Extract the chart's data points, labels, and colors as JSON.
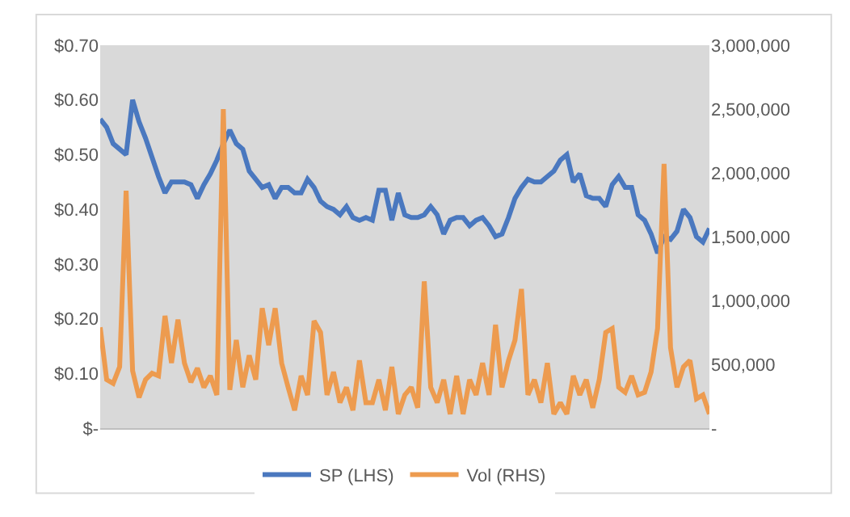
{
  "chart_data": {
    "type": "line",
    "tick_labels": "y",
    "legend": "bottom",
    "grid": false,
    "marker": "none",
    "line_style": "solid",
    "categories": [
      null,
      null,
      null,
      null,
      null,
      null,
      null,
      null,
      null,
      null,
      null,
      null,
      null,
      null,
      null,
      null,
      null,
      null,
      null,
      null,
      null,
      null,
      null,
      null,
      null,
      null,
      null,
      null,
      null,
      null,
      null,
      null,
      null,
      null,
      null,
      null,
      null,
      null,
      null,
      null,
      null,
      null,
      null,
      null,
      null,
      null,
      null,
      null,
      null,
      null,
      null,
      null,
      null,
      null,
      null,
      null,
      null,
      null,
      null,
      null,
      null,
      null,
      null,
      null,
      null,
      null,
      null,
      null,
      null,
      null,
      null,
      null,
      null,
      null,
      null,
      null,
      null,
      null,
      null,
      null,
      null,
      null,
      null,
      null,
      null,
      null,
      null,
      null,
      null,
      null,
      null,
      null,
      null,
      null,
      null
    ],
    "ylim": [
      0,
      0.7
    ],
    "yticks": [
      {
        "value": 0,
        "label": "$-"
      },
      {
        "value": 0.1,
        "label": "$0.10"
      },
      {
        "value": 0.2,
        "label": "$0.20"
      },
      {
        "value": 0.3,
        "label": "$0.30"
      },
      {
        "value": 0.4,
        "label": "$0.40"
      },
      {
        "value": 0.5,
        "label": "$0.50"
      },
      {
        "value": 0.6,
        "label": "$0.60"
      },
      {
        "value": 0.7,
        "label": "$0.70"
      }
    ],
    "y2lim": [
      0,
      3000000
    ],
    "y2ticks": [
      {
        "value": 0,
        "label": "-"
      },
      {
        "value": 500000,
        "label": "500,000"
      },
      {
        "value": 1000000,
        "label": "1,000,000"
      },
      {
        "value": 1500000,
        "label": "1,500,000"
      },
      {
        "value": 2000000,
        "label": "2,000,000"
      },
      {
        "value": 2500000,
        "label": "2,500,000"
      },
      {
        "value": 3000000,
        "label": "3,000,000"
      }
    ],
    "series": [
      {
        "name": "SP (LHS)",
        "color": "#4a78bf",
        "values": [
          0.565,
          0.55,
          0.52,
          0.51,
          0.5,
          0.6,
          0.56,
          0.53,
          0.495,
          0.46,
          0.43,
          0.45,
          0.45,
          0.45,
          0.445,
          0.42,
          0.445,
          0.465,
          0.49,
          0.52,
          0.545,
          0.52,
          0.51,
          0.47,
          0.455,
          0.44,
          0.445,
          0.42,
          0.44,
          0.44,
          0.43,
          0.43,
          0.455,
          0.44,
          0.415,
          0.405,
          0.4,
          0.39,
          0.405,
          0.385,
          0.38,
          0.385,
          0.38,
          0.435,
          0.435,
          0.38,
          0.43,
          0.39,
          0.385,
          0.385,
          0.39,
          0.405,
          0.39,
          0.355,
          0.38,
          0.385,
          0.385,
          0.37,
          0.38,
          0.385,
          0.37,
          0.35,
          0.355,
          0.385,
          0.42,
          0.44,
          0.455,
          0.45,
          0.45,
          0.46,
          0.47,
          0.49,
          0.5,
          0.45,
          0.465,
          0.425,
          0.42,
          0.42,
          0.405,
          0.445,
          0.46,
          0.44,
          0.44,
          0.39,
          0.38,
          0.355,
          0.32,
          0.35,
          0.345,
          0.36,
          0.4,
          0.385,
          0.35,
          0.34,
          0.365
        ]
      },
      {
        "name": "Vol (RHS)",
        "color": "#ed9b4f",
        "axis": "y2",
        "values": [
          790000,
          380000,
          350000,
          480000,
          1860000,
          450000,
          240000,
          380000,
          430000,
          410000,
          880000,
          510000,
          850000,
          510000,
          360000,
          470000,
          320000,
          410000,
          260000,
          2500000,
          300000,
          690000,
          320000,
          570000,
          380000,
          940000,
          650000,
          940000,
          510000,
          320000,
          140000,
          410000,
          260000,
          840000,
          750000,
          260000,
          440000,
          200000,
          320000,
          140000,
          530000,
          200000,
          200000,
          380000,
          140000,
          480000,
          110000,
          260000,
          320000,
          160000,
          1150000,
          320000,
          200000,
          380000,
          110000,
          410000,
          110000,
          380000,
          260000,
          510000,
          260000,
          810000,
          320000,
          530000,
          690000,
          1090000,
          260000,
          380000,
          200000,
          510000,
          110000,
          200000,
          110000,
          410000,
          260000,
          380000,
          160000,
          380000,
          750000,
          780000,
          320000,
          280000,
          410000,
          260000,
          280000,
          440000,
          780000,
          2070000,
          630000,
          320000,
          480000,
          530000,
          230000,
          260000,
          110000
        ]
      }
    ]
  }
}
